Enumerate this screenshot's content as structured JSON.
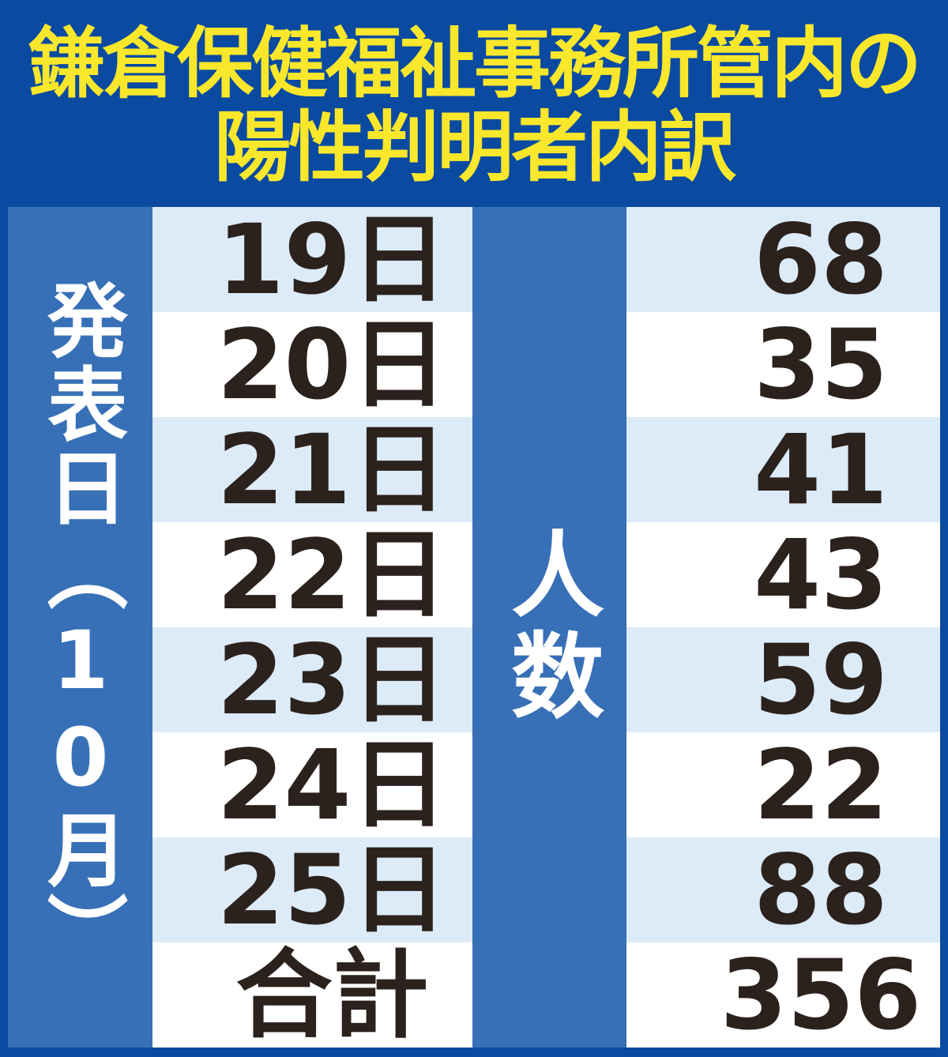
{
  "title": {
    "line1": "鎌倉保健福祉事務所管内の",
    "line2": "陽性判明者内訳"
  },
  "table": {
    "row_axis_label": {
      "part1": "発表日（",
      "part2": "10",
      "part3": "月）"
    },
    "value_axis_label": "人数",
    "rows": [
      {
        "date": "19日",
        "count": "68"
      },
      {
        "date": "20日",
        "count": "35"
      },
      {
        "date": "21日",
        "count": "41"
      },
      {
        "date": "22日",
        "count": "43"
      },
      {
        "date": "23日",
        "count": "59"
      },
      {
        "date": "24日",
        "count": "22"
      },
      {
        "date": "25日",
        "count": "88"
      },
      {
        "date": "合計",
        "count": "356"
      }
    ]
  },
  "chart_data": {
    "type": "table",
    "title": "鎌倉保健福祉事務所管内の陽性判明者内訳",
    "columns": [
      "発表日（10月）",
      "人数"
    ],
    "categories": [
      "19日",
      "20日",
      "21日",
      "22日",
      "23日",
      "24日",
      "25日",
      "合計"
    ],
    "values": [
      68,
      35,
      41,
      43,
      59,
      22,
      88,
      356
    ],
    "total": 356,
    "layout_hints": {
      "row_striping": [
        "light",
        "white"
      ],
      "header_orientation": "vertical"
    }
  },
  "colors": {
    "background": "#0a4aa0",
    "header_column": "#3770b6",
    "row_light": "#dcebf7",
    "row_white": "#ffffff",
    "title_text": "#f9e72c",
    "cell_text": "#2b211d",
    "header_text": "#ffffff"
  }
}
